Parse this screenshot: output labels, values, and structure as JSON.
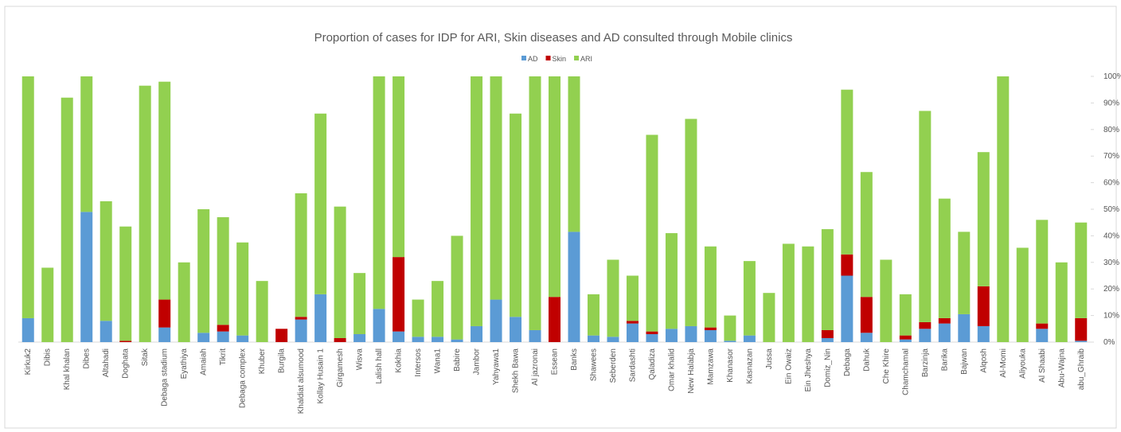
{
  "chart_data": {
    "type": "stacked_bar",
    "title": "Proportion of cases for IDP for ARI, Skin diseases and AD consulted through Mobile clinics",
    "categories": [
      "Kirkuk2",
      "Dibis",
      "Khal khalan",
      "Dibes",
      "Altahadi",
      "Doghata",
      "Sitak",
      "Debaga stadium",
      "Eyathiya",
      "Amaiah",
      "Tikrit",
      "Debaga complex",
      "Khuber",
      "Burgila",
      "Khaldiat alsumood",
      "Kollay Husain 1",
      "Girgamesh",
      "Wisva",
      "Lalish hall",
      "Kokhia",
      "Intersos",
      "Wana1",
      "Babire",
      "Jambor",
      "Yahyawa1",
      "Shekh Bawa",
      "Al jazronai",
      "Essean",
      "Banks",
      "Shawees",
      "Seberden",
      "Sardashti",
      "Qaladiza",
      "Omar khalid",
      "New Halabja",
      "Mamzawa",
      "Khanasor",
      "Kasnazan",
      "Jussa",
      "Ein Owaiz",
      "Ein Jheshya",
      "Domiz_Nin",
      "Debaga",
      "Dahuk",
      "Che Khire",
      "Chamchamal",
      "Barzinja",
      "Barika",
      "Bajwan",
      "Alqosh",
      "Al-Momi",
      "Aliyouka",
      "Al Shaabi",
      "Abu-Wajna",
      "abu_Ghraib"
    ],
    "series": [
      {
        "name": "AD",
        "color": "#5b9bd5",
        "values": [
          9,
          0,
          0,
          49,
          8,
          0,
          0,
          5.5,
          0,
          3.5,
          4,
          2.5,
          0,
          0,
          8.5,
          18,
          0,
          3,
          12.5,
          4,
          2,
          2,
          1,
          6,
          16,
          9.5,
          4.5,
          0,
          41.5,
          2.5,
          2,
          7,
          3,
          5,
          6,
          4.5,
          0.5,
          2.5,
          0,
          0,
          0,
          1.5,
          25,
          3.5,
          0,
          1,
          5,
          7,
          10.5,
          6,
          0,
          0,
          5,
          0,
          0.5
        ]
      },
      {
        "name": "Skin",
        "color": "#c00000",
        "values": [
          0,
          0,
          0,
          0,
          0,
          0.5,
          0,
          10.5,
          0,
          0,
          2.5,
          0,
          0,
          5,
          1,
          0,
          1.5,
          0,
          0,
          28,
          0,
          0,
          0,
          0,
          0,
          0,
          0,
          17,
          0,
          0,
          0,
          1,
          1,
          0,
          0,
          1,
          0,
          0,
          0,
          0,
          0,
          3,
          8,
          13.5,
          0,
          1.5,
          2.5,
          2,
          0,
          15,
          0,
          0,
          2,
          0,
          8.5
        ]
      },
      {
        "name": "ARI",
        "color": "#92d050",
        "values": [
          91,
          28,
          92,
          51,
          45,
          43,
          96.5,
          82,
          30,
          46.5,
          40.5,
          35,
          23,
          0,
          46.5,
          68,
          49.5,
          23,
          87.5,
          68,
          14,
          21,
          39,
          94,
          84,
          76.5,
          95.5,
          83,
          58.5,
          15.5,
          29,
          17,
          74,
          36,
          78,
          30.5,
          9.5,
          28,
          18.5,
          37,
          36,
          38,
          62,
          47,
          31,
          15.5,
          79.5,
          45,
          31,
          50.5,
          100,
          35.5,
          39,
          30,
          36
        ]
      }
    ],
    "ylim": [
      0,
      100
    ],
    "yticks": [
      {
        "value": 0,
        "label": "0%"
      },
      {
        "value": 10,
        "label": "10%"
      },
      {
        "value": 20,
        "label": "20%"
      },
      {
        "value": 30,
        "label": "30%"
      },
      {
        "value": 40,
        "label": "40%"
      },
      {
        "value": 50,
        "label": "50%"
      },
      {
        "value": 60,
        "label": "60%"
      },
      {
        "value": 70,
        "label": "70%"
      },
      {
        "value": 80,
        "label": "80%"
      },
      {
        "value": 90,
        "label": "90%"
      },
      {
        "value": 100,
        "label": "100%"
      }
    ],
    "grid": false
  }
}
